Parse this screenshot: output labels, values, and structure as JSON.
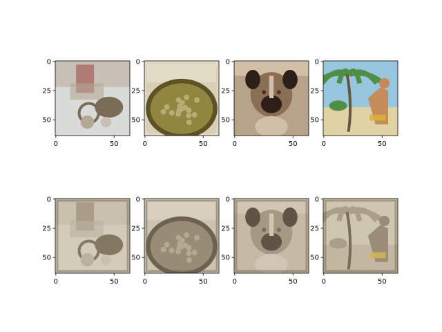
{
  "chart_data": {
    "type": "image_grid",
    "rows": 2,
    "cols": 4,
    "axes": {
      "x_ticks": [
        0,
        50
      ],
      "y_ticks": [
        0,
        25,
        50
      ],
      "xlim": [
        -0.5,
        63.5
      ],
      "ylim": [
        63.5,
        -0.5
      ],
      "tick_labels_x": [
        "0",
        "50"
      ],
      "tick_labels_y": [
        "0",
        "25",
        "50"
      ]
    },
    "panels": [
      {
        "row": 0,
        "col": 0,
        "subject": "objects-on-table",
        "tone": "color",
        "colors": {
          "bg": "#d9dbd8",
          "top": "#c8c0b7",
          "accent": "#b07a74",
          "mid": "#b3a895",
          "dark": "#7a6c57"
        }
      },
      {
        "row": 0,
        "col": 1,
        "subject": "bowl-of-food",
        "tone": "color",
        "colors": {
          "bg": "#d8cfb4",
          "top": "#e2dcc7",
          "accent": "#8f8640",
          "mid": "#b8ad74",
          "dark": "#5d5126"
        }
      },
      {
        "row": 0,
        "col": 2,
        "subject": "boxer-dog",
        "tone": "color",
        "colors": {
          "bg": "#b7a38a",
          "top": "#d1bfa7",
          "accent": "#4a3426",
          "mid": "#8a6f55",
          "dark": "#2b1f18"
        }
      },
      {
        "row": 0,
        "col": 3,
        "subject": "beach-palms-person",
        "tone": "color",
        "colors": {
          "bg": "#97c6df",
          "top": "#4f8f45",
          "accent": "#c58b59",
          "mid": "#e1d2a5",
          "dark": "#65563c"
        }
      },
      {
        "row": 1,
        "col": 0,
        "subject": "objects-on-table",
        "tone": "sepia",
        "colors": {
          "bg": "#d6d0c2",
          "top": "#c9c1b1",
          "accent": "#9f907b",
          "mid": "#b9ae9b",
          "dark": "#6d604c"
        }
      },
      {
        "row": 1,
        "col": 1,
        "subject": "bowl-of-food",
        "tone": "sepia",
        "colors": {
          "bg": "#cec5b1",
          "top": "#ddd5c6",
          "accent": "#887b66",
          "mid": "#aca08c",
          "dark": "#4e4334"
        }
      },
      {
        "row": 1,
        "col": 2,
        "subject": "boxer-dog",
        "tone": "sepia",
        "colors": {
          "bg": "#c2b8a5",
          "top": "#d3c9b8",
          "accent": "#5d5041",
          "mid": "#9a8d79",
          "dark": "#3b3126"
        }
      },
      {
        "row": 1,
        "col": 3,
        "subject": "beach-palms-person",
        "tone": "sepia",
        "colors": {
          "bg": "#d0c8b6",
          "top": "#9f9582",
          "accent": "#8a7b66",
          "mid": "#c0b5a0",
          "dark": "#5d513f"
        }
      }
    ]
  }
}
